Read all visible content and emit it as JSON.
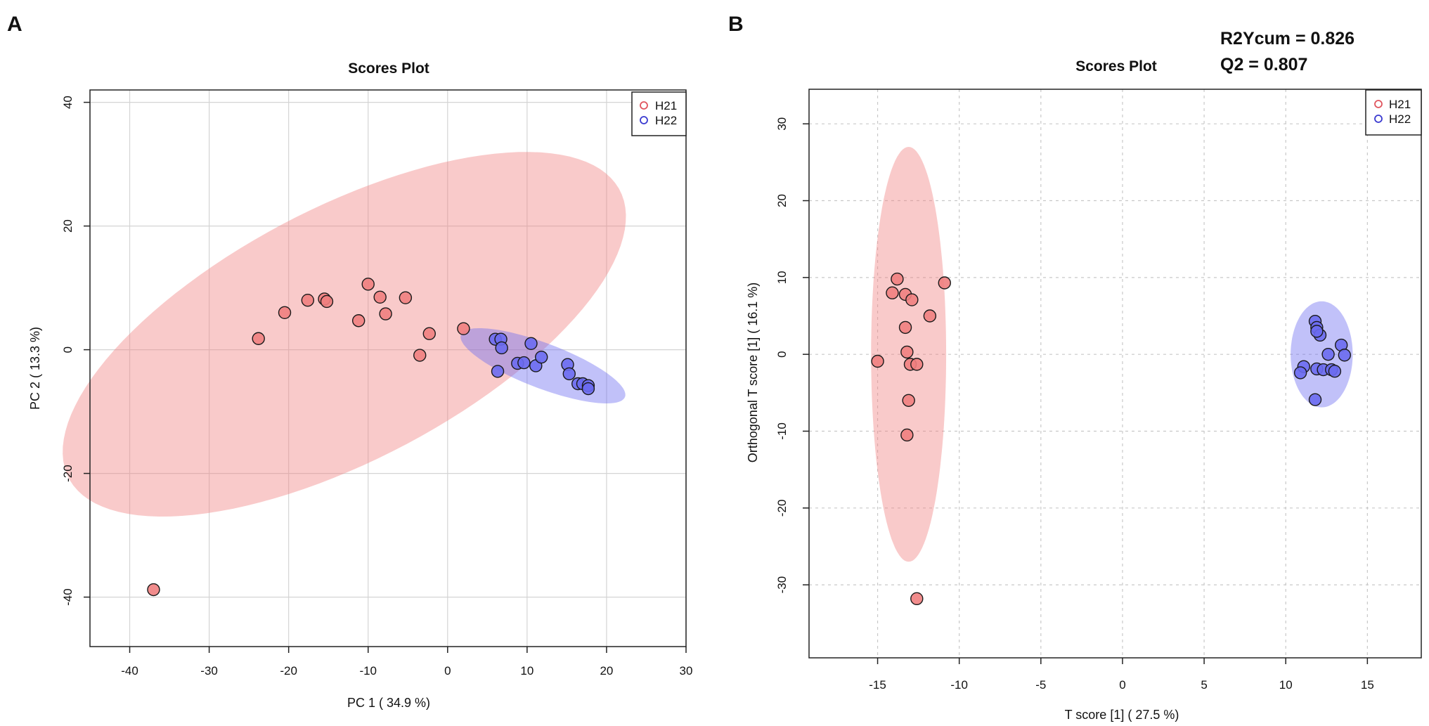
{
  "chart_data": [
    {
      "panel_label": "A",
      "type": "scatter",
      "title": "Scores Plot",
      "xlabel": "PC 1 ( 34.9 %)",
      "ylabel": "PC 2 ( 13.3 %)",
      "xlim": [
        -45,
        30
      ],
      "ylim": [
        -48,
        42
      ],
      "xticks": [
        -40,
        -30,
        -20,
        -10,
        0,
        10,
        20,
        30
      ],
      "yticks": [
        40,
        20,
        0,
        -20,
        -40
      ],
      "grid": "solid",
      "legend_position": "top-right",
      "series": [
        {
          "name": "H21",
          "color": "#e0555e",
          "fill": "#f08080",
          "ellipse": {
            "center": [
              -13,
              2.5
            ],
            "semi_axes": [
              42,
              19
            ],
            "angle_deg": 37
          },
          "points": [
            [
              -37,
              -38.8
            ],
            [
              -23.8,
              1.8
            ],
            [
              -20.5,
              6
            ],
            [
              -17.6,
              8
            ],
            [
              -15.5,
              8.2
            ],
            [
              -15.2,
              7.8
            ],
            [
              -11.2,
              4.7
            ],
            [
              -10,
              10.6
            ],
            [
              -8.5,
              8.5
            ],
            [
              -7.8,
              5.8
            ],
            [
              -5.3,
              8.4
            ],
            [
              -3.5,
              -0.9
            ],
            [
              -2.3,
              2.6
            ],
            [
              2,
              3.4
            ]
          ]
        },
        {
          "name": "H22",
          "color": "#3a3ad0",
          "fill": "#6b6bf0",
          "ellipse": {
            "center": [
              12,
              -2.6
            ],
            "semi_axes": [
              11.5,
              3.5
            ],
            "angle_deg": -27
          },
          "points": [
            [
              6,
              1.7
            ],
            [
              6.7,
              1.7
            ],
            [
              6.8,
              0.3
            ],
            [
              6.3,
              -3.5
            ],
            [
              8.8,
              -2.2
            ],
            [
              9.6,
              -2.1
            ],
            [
              10.5,
              1
            ],
            [
              11.1,
              -2.6
            ],
            [
              11.8,
              -1.2
            ],
            [
              15.1,
              -2.4
            ],
            [
              15.3,
              -3.9
            ],
            [
              16.4,
              -5.5
            ],
            [
              17,
              -5.5
            ],
            [
              17.7,
              -5.8
            ],
            [
              17.7,
              -6.3
            ]
          ]
        }
      ]
    },
    {
      "panel_label": "B",
      "type": "scatter",
      "title": "Scores Plot",
      "annotations": [
        "R2Ycum = 0.826",
        "Q2 = 0.807"
      ],
      "xlabel": "T score [1] ( 27.5 %)",
      "ylabel": "Orthogonal T score [1] ( 16.1 %)",
      "xlim": [
        -19.2,
        18.3
      ],
      "ylim": [
        -39.5,
        34.5
      ],
      "xticks": [
        -15,
        -10,
        -5,
        0,
        5,
        10,
        15
      ],
      "yticks": [
        30,
        20,
        10,
        0,
        -10,
        -20,
        -30
      ],
      "grid": "dotted",
      "legend_position": "top-right",
      "series": [
        {
          "name": "H21",
          "color": "#e0555e",
          "fill": "#f08080",
          "ellipse": {
            "center": [
              -13.1,
              0
            ],
            "semi_axes": [
              2.3,
              27
            ],
            "angle_deg": 0
          },
          "points": [
            [
              -15,
              -0.9
            ],
            [
              -14.1,
              8
            ],
            [
              -13.8,
              9.8
            ],
            [
              -13.3,
              7.8
            ],
            [
              -12.9,
              7.1
            ],
            [
              -13.3,
              3.5
            ],
            [
              -13.2,
              0.3
            ],
            [
              -13,
              -1.3
            ],
            [
              -12.6,
              -1.3
            ],
            [
              -11.8,
              5
            ],
            [
              -10.9,
              9.3
            ],
            [
              -13.1,
              -6
            ],
            [
              -13.2,
              -10.5
            ],
            [
              -12.6,
              -31.8
            ]
          ]
        },
        {
          "name": "H22",
          "color": "#3a3ad0",
          "fill": "#6b6bf0",
          "ellipse": {
            "center": [
              12.2,
              0
            ],
            "semi_axes": [
              1.9,
              6.9
            ],
            "angle_deg": 0
          },
          "points": [
            [
              11.8,
              4.3
            ],
            [
              11.9,
              3.5
            ],
            [
              12.1,
              2.5
            ],
            [
              11.9,
              3
            ],
            [
              13.4,
              1.2
            ],
            [
              12.6,
              0
            ],
            [
              13.6,
              -0.1
            ],
            [
              11.1,
              -1.6
            ],
            [
              10.9,
              -2.4
            ],
            [
              11.9,
              -1.9
            ],
            [
              12.3,
              -2
            ],
            [
              12.8,
              -2
            ],
            [
              13,
              -2.2
            ],
            [
              11.8,
              -5.9
            ]
          ]
        }
      ]
    }
  ]
}
